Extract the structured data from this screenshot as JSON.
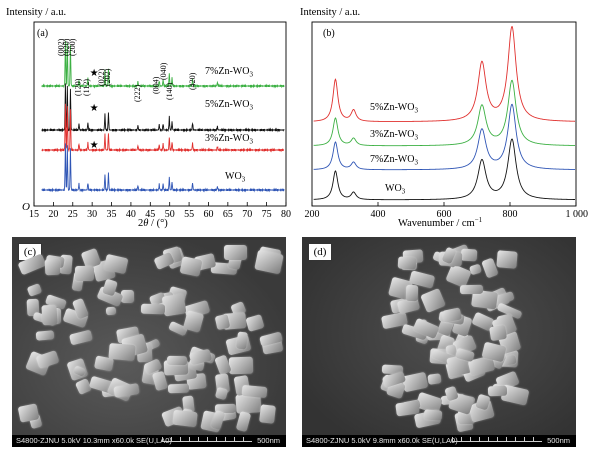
{
  "panel_a": {
    "letter": "(a)",
    "ylabel": "Intensity / a.u.",
    "xlabel_prefix": "2",
    "xlabel_theta": "θ",
    "xlabel_suffix": " / (°)",
    "x_ticks": [
      "15",
      "20",
      "25",
      "30",
      "35",
      "40",
      "45",
      "50",
      "55",
      "60",
      "65",
      "70",
      "75",
      "80"
    ],
    "origin": "O",
    "peak_labels": [
      "(002)",
      "(020)",
      "(200)",
      "(120)",
      "(112)",
      "(022)",
      "(202)",
      "(222)",
      "(004)",
      "(040)",
      "(140)",
      "(420)"
    ],
    "star": "★",
    "series_labels": [
      {
        "base": "7%Zn-WO",
        "sub": "3"
      },
      {
        "base": "5%Zn-WO",
        "sub": "3"
      },
      {
        "base": "3%Zn-WO",
        "sub": "3"
      },
      {
        "base": "WO",
        "sub": "3"
      }
    ]
  },
  "panel_b": {
    "letter": "(b)",
    "ylabel": "Intensity / a.u.",
    "xlabel": "Wavenumber / cm",
    "xlabel_sup": "−1",
    "x_ticks": [
      "200",
      "400",
      "600",
      "800",
      "1 000"
    ],
    "series_labels": [
      {
        "base": "5%Zn-WO",
        "sub": "3"
      },
      {
        "base": "3%Zn-WO",
        "sub": "3"
      },
      {
        "base": "7%Zn-WO",
        "sub": "3"
      },
      {
        "base": "WO",
        "sub": "3"
      }
    ]
  },
  "panel_c": {
    "letter": "(c)",
    "info": "S4800-ZJNU 5.0kV 10.3mm x60.0k SE(U,LA0)",
    "scale": "500nm"
  },
  "panel_d": {
    "letter": "(d)",
    "info": "S4800-ZJNU 5.0kV 9.8mm x60.0k SE(U,LA0)",
    "scale": "500nm"
  },
  "colors": {
    "green": "#3cb043",
    "black": "#111111",
    "red": "#e0302e",
    "blue": "#2f55b5"
  },
  "chart_data": [
    {
      "type": "line",
      "title": "",
      "xlabel": "2θ / (°)",
      "ylabel": "Intensity / a.u.",
      "xlim": [
        15,
        80
      ],
      "series": [
        {
          "name": "7%Zn-WO3",
          "color": "#3cb043",
          "offset": 3,
          "peaks": [
            [
              23.1,
              1.0
            ],
            [
              23.6,
              0.95
            ],
            [
              24.4,
              0.9
            ],
            [
              26.6,
              0.14
            ],
            [
              28.9,
              0.16
            ],
            [
              33.3,
              0.35
            ],
            [
              34.2,
              0.38
            ],
            [
              41.8,
              0.1
            ],
            [
              47.3,
              0.12
            ],
            [
              48.3,
              0.14
            ],
            [
              49.9,
              0.28
            ],
            [
              50.6,
              0.18
            ],
            [
              55.9,
              0.16
            ],
            [
              62.3,
              0.08
            ]
          ]
        },
        {
          "name": "5%Zn-WO3",
          "color": "#111111",
          "offset": 2,
          "peaks": [
            [
              23.1,
              1.0
            ],
            [
              23.6,
              0.95
            ],
            [
              24.4,
              0.9
            ],
            [
              26.6,
              0.14
            ],
            [
              28.9,
              0.16
            ],
            [
              33.3,
              0.35
            ],
            [
              34.2,
              0.38
            ],
            [
              41.8,
              0.1
            ],
            [
              47.3,
              0.12
            ],
            [
              48.3,
              0.14
            ],
            [
              49.9,
              0.28
            ],
            [
              50.6,
              0.18
            ],
            [
              55.9,
              0.16
            ],
            [
              62.3,
              0.08
            ]
          ]
        },
        {
          "name": "3%Zn-WO3",
          "color": "#e0302e",
          "offset": 1,
          "peaks": [
            [
              23.1,
              1.0
            ],
            [
              23.6,
              0.95
            ],
            [
              24.4,
              0.9
            ],
            [
              26.6,
              0.14
            ],
            [
              28.9,
              0.16
            ],
            [
              33.3,
              0.35
            ],
            [
              34.2,
              0.38
            ],
            [
              41.8,
              0.1
            ],
            [
              47.3,
              0.12
            ],
            [
              48.3,
              0.14
            ],
            [
              49.9,
              0.28
            ],
            [
              50.6,
              0.18
            ],
            [
              55.9,
              0.16
            ],
            [
              62.3,
              0.08
            ]
          ]
        },
        {
          "name": "WO3",
          "color": "#2f55b5",
          "offset": 0,
          "peaks": [
            [
              23.1,
              1.0
            ],
            [
              23.6,
              0.95
            ],
            [
              24.4,
              0.9
            ],
            [
              26.6,
              0.14
            ],
            [
              28.9,
              0.16
            ],
            [
              33.3,
              0.35
            ],
            [
              34.2,
              0.38
            ],
            [
              41.8,
              0.1
            ],
            [
              47.3,
              0.12
            ],
            [
              48.3,
              0.14
            ],
            [
              49.9,
              0.28
            ],
            [
              50.6,
              0.18
            ],
            [
              55.9,
              0.16
            ],
            [
              62.3,
              0.08
            ]
          ]
        }
      ],
      "star_positions_2theta": [
        30.5,
        30.5,
        30.5
      ]
    },
    {
      "type": "line",
      "title": "",
      "xlabel": "Wavenumber / cm−1",
      "ylabel": "Intensity / a.u.",
      "xlim": [
        200,
        1000
      ],
      "series": [
        {
          "name": "5%Zn-WO3",
          "color": "#e0302e",
          "offset": 3,
          "peaks": [
            [
              271,
              0.45
            ],
            [
              326,
              0.12
            ],
            [
              715,
              0.62
            ],
            [
              806,
              1.0
            ]
          ]
        },
        {
          "name": "3%Zn-WO3",
          "color": "#3cb043",
          "offset": 2,
          "peaks": [
            [
              271,
              0.42
            ],
            [
              326,
              0.11
            ],
            [
              715,
              0.6
            ],
            [
              806,
              0.98
            ]
          ]
        },
        {
          "name": "7%Zn-WO3",
          "color": "#2f55b5",
          "offset": 1,
          "peaks": [
            [
              271,
              0.42
            ],
            [
              326,
              0.11
            ],
            [
              715,
              0.6
            ],
            [
              806,
              0.98
            ]
          ]
        },
        {
          "name": "WO3",
          "color": "#111111",
          "offset": 0,
          "peaks": [
            [
              271,
              0.48
            ],
            [
              326,
              0.12
            ],
            [
              715,
              0.65
            ],
            [
              806,
              1.0
            ]
          ]
        }
      ]
    }
  ]
}
